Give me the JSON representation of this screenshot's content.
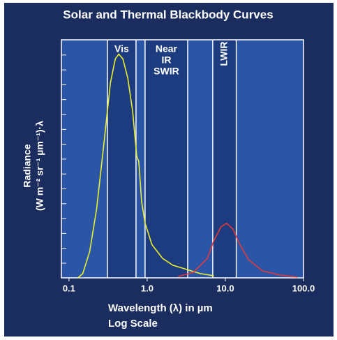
{
  "chart_data": {
    "type": "line",
    "title": "Solar and Thermal Blackbody Curves",
    "y_label_lines": [
      "Radiance",
      "(W m⁻² sr⁻¹ µm⁻¹)·λ"
    ],
    "x_label_lines": [
      "Wavelength (λ) in µm",
      "Log Scale"
    ],
    "x_log": true,
    "xlim": [
      0.08,
      100
    ],
    "ylim": [
      0,
      100
    ],
    "xticks": [
      0.1,
      {
        "value": 1,
        "label": "1.0"
      },
      {
        "value": 10,
        "label": "10.0"
      },
      {
        "value": 100,
        "label": "100.0"
      }
    ],
    "bands": [
      {
        "label_lines": [
          "Vis"
        ],
        "range": [
          0.31,
          0.72
        ]
      },
      {
        "label_lines": [
          "Near",
          "IR",
          "SWIR"
        ],
        "range": [
          0.94,
          3.3
        ]
      },
      {
        "label_lines": [
          "LWIR"
        ],
        "range": [
          6.9,
          13.8
        ],
        "rotated": true
      }
    ],
    "series": [
      {
        "color": "#e8ef2a",
        "x": [
          0.13,
          0.15,
          0.184,
          0.226,
          0.277,
          0.339,
          0.392,
          0.433,
          0.489,
          0.565,
          0.652,
          0.736,
          0.782,
          0.85,
          0.94,
          1.15,
          1.57,
          2.13,
          3.47,
          4.8,
          7.13
        ],
        "values": [
          0,
          1.8,
          11,
          29,
          55,
          82,
          92,
          94,
          92,
          84,
          70,
          51,
          49,
          32,
          23,
          14,
          8.2,
          5.3,
          3.2,
          1.8,
          0.9
        ]
      },
      {
        "color": "#e0393a",
        "x": [
          2.5,
          3.9,
          5.9,
          7.1,
          8.8,
          10.4,
          12.5,
          15.3,
          19.9,
          30,
          50,
          83
        ],
        "values": [
          0.6,
          2.3,
          8.2,
          15.5,
          21.4,
          22.9,
          20.5,
          14.1,
          7.6,
          2.9,
          1.2,
          0.3
        ]
      }
    ]
  }
}
